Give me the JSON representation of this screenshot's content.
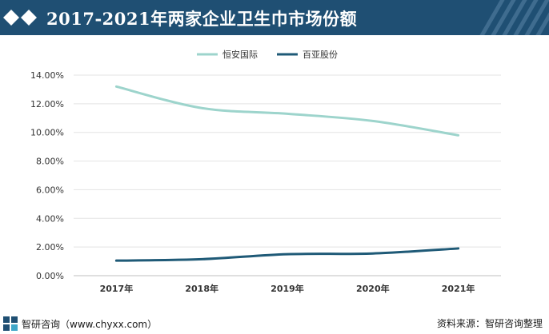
{
  "header": {
    "title": "2017-2021年两家企业卫生巾市场份额"
  },
  "footer": {
    "left_text": "智研咨询（www.chyxx.com）",
    "right_text": "资料来源：智研咨询整理"
  },
  "colors": {
    "header_bg": "#1f4f73",
    "series_hengan": "#9dd4cc",
    "series_baiya": "#1f5a77"
  },
  "chart_data": {
    "type": "line",
    "x": [
      "2017年",
      "2018年",
      "2019年",
      "2020年",
      "2021年"
    ],
    "series": [
      {
        "name": "恒安国际",
        "values": [
          13.2,
          11.7,
          11.3,
          10.8,
          9.8
        ],
        "color": "#9dd4cc"
      },
      {
        "name": "百亚股份",
        "values": [
          1.05,
          1.15,
          1.5,
          1.55,
          1.9
        ],
        "color": "#1f5a77"
      }
    ],
    "ylim": [
      0,
      14
    ],
    "yticks": [
      0,
      2,
      4,
      6,
      8,
      10,
      12,
      14
    ],
    "ytick_labels": [
      "0.00%",
      "2.00%",
      "4.00%",
      "6.00%",
      "8.00%",
      "10.00%",
      "12.00%",
      "14.00%"
    ],
    "grid": true,
    "legend": "top-center"
  }
}
